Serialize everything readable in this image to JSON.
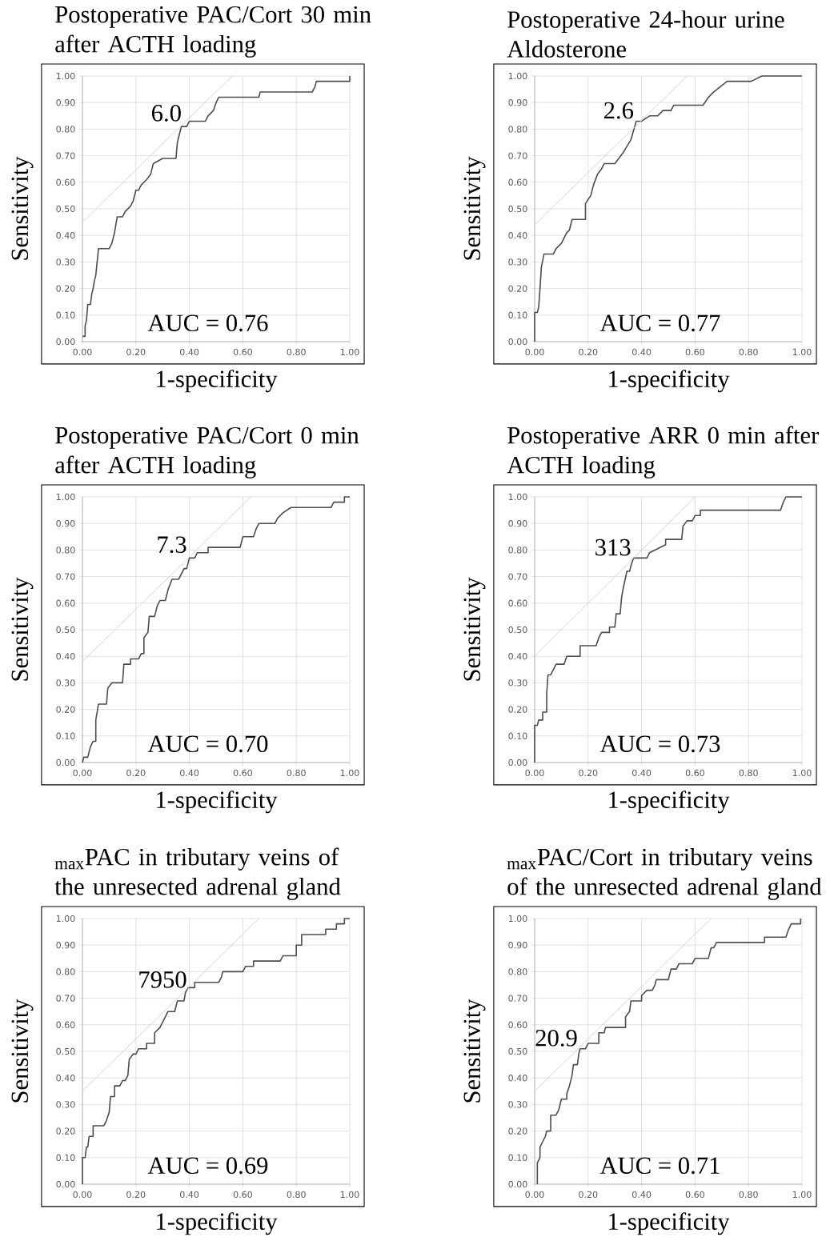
{
  "chart_data": [
    {
      "type": "line",
      "title": "Postoperative PAC/Cort 30 min after ACTH loading",
      "xlabel": "1-specificity",
      "ylabel": "Sensitivity",
      "xlim": [
        0,
        1
      ],
      "ylim": [
        0,
        1
      ],
      "grid": true,
      "xticks": [
        {
          "value": 0,
          "label": "0.00"
        },
        {
          "value": 0.2,
          "label": "0.20"
        },
        {
          "value": 0.4,
          "label": "0.40"
        },
        {
          "value": 0.6,
          "label": "0.60"
        },
        {
          "value": 0.8,
          "label": "0.80"
        },
        {
          "value": 1,
          "label": "1.00"
        }
      ],
      "yticks": [
        {
          "value": 0,
          "label": "0.00"
        },
        {
          "value": 0.1,
          "label": "0.10"
        },
        {
          "value": 0.2,
          "label": "0.20"
        },
        {
          "value": 0.3,
          "label": "0.30"
        },
        {
          "value": 0.4,
          "label": "0.40"
        },
        {
          "value": 0.5,
          "label": "0.50"
        },
        {
          "value": 0.6,
          "label": "0.60"
        },
        {
          "value": 0.7,
          "label": "0.70"
        },
        {
          "value": 0.8,
          "label": "0.80"
        },
        {
          "value": 0.9,
          "label": "0.90"
        },
        {
          "value": 1,
          "label": "1.00"
        }
      ],
      "series": [
        {
          "color": "#4d4d4d",
          "x": [
            0,
            0.01,
            0.01,
            0.015,
            0.02,
            0.03,
            0.035,
            0.04,
            0.045,
            0.05,
            0.055,
            0.06,
            0.1,
            0.11,
            0.12,
            0.13,
            0.15,
            0.16,
            0.18,
            0.19,
            0.2,
            0.21,
            0.22,
            0.24,
            0.255,
            0.265,
            0.3,
            0.35,
            0.355,
            0.365,
            0.37,
            0.39,
            0.4,
            0.46,
            0.47,
            0.49,
            0.5,
            0.51,
            0.66,
            0.665,
            0.86,
            0.87,
            0.875,
            1,
            1
          ],
          "values": [
            0.02,
            0.02,
            0.06,
            0.08,
            0.14,
            0.14,
            0.18,
            0.2,
            0.23,
            0.25,
            0.3,
            0.35,
            0.35,
            0.37,
            0.41,
            0.47,
            0.47,
            0.49,
            0.51,
            0.53,
            0.57,
            0.57,
            0.59,
            0.61,
            0.63,
            0.67,
            0.69,
            0.69,
            0.75,
            0.79,
            0.81,
            0.81,
            0.83,
            0.83,
            0.85,
            0.87,
            0.9,
            0.92,
            0.92,
            0.94,
            0.94,
            0.96,
            0.98,
            0.98,
            1
          ]
        },
        {
          "color": "#d0d0d0",
          "x": [
            0,
            0.56
          ],
          "values": [
            0.45,
            1
          ]
        }
      ],
      "annotations": [
        {
          "text": "6.0",
          "x": 0.38,
          "y": 0.82
        },
        "AUC = 0.76"
      ]
    },
    {
      "type": "line",
      "title": "Postoperative 24-hour urine Aldosterone",
      "xlabel": "1-specificity",
      "ylabel": "Sensitivity",
      "xlim": [
        0,
        1
      ],
      "ylim": [
        0,
        1
      ],
      "grid": true,
      "xticks": [
        {
          "value": 0,
          "label": "0.00"
        },
        {
          "value": 0.2,
          "label": "0.20"
        },
        {
          "value": 0.4,
          "label": "0.40"
        },
        {
          "value": 0.6,
          "label": "0.60"
        },
        {
          "value": 0.8,
          "label": "0.80"
        },
        {
          "value": 1,
          "label": "1.00"
        }
      ],
      "yticks": [
        {
          "value": 0,
          "label": "0.00"
        },
        {
          "value": 0.1,
          "label": "0.10"
        },
        {
          "value": 0.2,
          "label": "0.20"
        },
        {
          "value": 0.3,
          "label": "0.30"
        },
        {
          "value": 0.4,
          "label": "0.40"
        },
        {
          "value": 0.5,
          "label": "0.50"
        },
        {
          "value": 0.6,
          "label": "0.60"
        },
        {
          "value": 0.7,
          "label": "0.70"
        },
        {
          "value": 0.8,
          "label": "0.80"
        },
        {
          "value": 0.9,
          "label": "0.90"
        },
        {
          "value": 1,
          "label": "1.00"
        }
      ],
      "series": [
        {
          "color": "#4d4d4d",
          "x": [
            0,
            0,
            0.01,
            0.015,
            0.02,
            0.025,
            0.035,
            0.07,
            0.08,
            0.1,
            0.12,
            0.13,
            0.14,
            0.19,
            0.19,
            0.21,
            0.22,
            0.235,
            0.25,
            0.26,
            0.3,
            0.33,
            0.36,
            0.38,
            0.4,
            0.43,
            0.46,
            0.48,
            0.51,
            0.52,
            0.63,
            0.65,
            0.67,
            0.72,
            0.81,
            0.85,
            1
          ],
          "values": [
            0,
            0.11,
            0.11,
            0.13,
            0.2,
            0.28,
            0.33,
            0.33,
            0.35,
            0.37,
            0.41,
            0.42,
            0.46,
            0.46,
            0.52,
            0.55,
            0.59,
            0.63,
            0.65,
            0.67,
            0.67,
            0.71,
            0.76,
            0.83,
            0.83,
            0.85,
            0.85,
            0.87,
            0.87,
            0.89,
            0.89,
            0.92,
            0.94,
            0.98,
            0.98,
            1,
            1
          ]
        },
        {
          "color": "#d0d0d0",
          "x": [
            0,
            0.57
          ],
          "values": [
            0.44,
            1
          ]
        }
      ],
      "annotations": [
        {
          "text": "2.6",
          "x": 0.38,
          "y": 0.83
        },
        "AUC = 0.77"
      ]
    },
    {
      "type": "line",
      "title": "Postoperative PAC/Cort 0 min after ACTH loading",
      "xlabel": "1-specificity",
      "ylabel": "Sensitivity",
      "xlim": [
        0,
        1
      ],
      "ylim": [
        0,
        1
      ],
      "grid": true,
      "xticks": [
        {
          "value": 0,
          "label": "0.00"
        },
        {
          "value": 0.2,
          "label": "0.20"
        },
        {
          "value": 0.4,
          "label": "0.40"
        },
        {
          "value": 0.6,
          "label": "0.60"
        },
        {
          "value": 0.8,
          "label": "0.80"
        },
        {
          "value": 1,
          "label": "1.00"
        }
      ],
      "yticks": [
        {
          "value": 0,
          "label": "0.00"
        },
        {
          "value": 0.1,
          "label": "0.10"
        },
        {
          "value": 0.2,
          "label": "0.20"
        },
        {
          "value": 0.3,
          "label": "0.30"
        },
        {
          "value": 0.4,
          "label": "0.40"
        },
        {
          "value": 0.5,
          "label": "0.50"
        },
        {
          "value": 0.6,
          "label": "0.60"
        },
        {
          "value": 0.7,
          "label": "0.70"
        },
        {
          "value": 0.8,
          "label": "0.80"
        },
        {
          "value": 0.9,
          "label": "0.90"
        },
        {
          "value": 1,
          "label": "1.00"
        }
      ],
      "series": [
        {
          "color": "#4d4d4d",
          "x": [
            0,
            0.005,
            0.02,
            0.03,
            0.04,
            0.05,
            0.05,
            0.06,
            0.09,
            0.095,
            0.11,
            0.15,
            0.155,
            0.18,
            0.18,
            0.21,
            0.22,
            0.23,
            0.23,
            0.245,
            0.25,
            0.27,
            0.28,
            0.29,
            0.31,
            0.32,
            0.335,
            0.36,
            0.37,
            0.38,
            0.39,
            0.4,
            0.42,
            0.43,
            0.47,
            0.47,
            0.59,
            0.6,
            0.64,
            0.65,
            0.66,
            0.72,
            0.73,
            0.75,
            0.78,
            0.93,
            0.94,
            0.98,
            0.98,
            1
          ],
          "values": [
            0,
            0.02,
            0.02,
            0.06,
            0.08,
            0.08,
            0.16,
            0.22,
            0.22,
            0.28,
            0.3,
            0.3,
            0.37,
            0.37,
            0.39,
            0.39,
            0.41,
            0.41,
            0.47,
            0.49,
            0.55,
            0.55,
            0.59,
            0.61,
            0.61,
            0.65,
            0.69,
            0.69,
            0.71,
            0.73,
            0.73,
            0.77,
            0.77,
            0.79,
            0.79,
            0.81,
            0.81,
            0.85,
            0.85,
            0.88,
            0.9,
            0.9,
            0.92,
            0.94,
            0.96,
            0.96,
            0.98,
            0.98,
            1,
            1
          ]
        },
        {
          "color": "#d0d0d0",
          "x": [
            0,
            0.63
          ],
          "values": [
            0.38,
            1
          ]
        }
      ],
      "annotations": [
        {
          "text": "7.3",
          "x": 0.4,
          "y": 0.78
        },
        "AUC = 0.70"
      ]
    },
    {
      "type": "line",
      "title": "Postoperative ARR 0 min after ACTH loading",
      "xlabel": "1-specificity",
      "ylabel": "Sensitivity",
      "xlim": [
        0,
        1
      ],
      "ylim": [
        0,
        1
      ],
      "grid": true,
      "xticks": [
        {
          "value": 0,
          "label": "0.00"
        },
        {
          "value": 0.2,
          "label": "0.20"
        },
        {
          "value": 0.4,
          "label": "0.40"
        },
        {
          "value": 0.6,
          "label": "0.60"
        },
        {
          "value": 0.8,
          "label": "0.80"
        },
        {
          "value": 1,
          "label": "1.00"
        }
      ],
      "yticks": [
        {
          "value": 0,
          "label": "0.00"
        },
        {
          "value": 0.1,
          "label": "0.10"
        },
        {
          "value": 0.2,
          "label": "0.20"
        },
        {
          "value": 0.3,
          "label": "0.30"
        },
        {
          "value": 0.4,
          "label": "0.40"
        },
        {
          "value": 0.5,
          "label": "0.50"
        },
        {
          "value": 0.6,
          "label": "0.60"
        },
        {
          "value": 0.7,
          "label": "0.70"
        },
        {
          "value": 0.8,
          "label": "0.80"
        },
        {
          "value": 0.9,
          "label": "0.90"
        },
        {
          "value": 1,
          "label": "1.00"
        }
      ],
      "series": [
        {
          "color": "#4d4d4d",
          "x": [
            0,
            0,
            0.01,
            0.015,
            0.03,
            0.03,
            0.045,
            0.045,
            0.05,
            0.06,
            0.07,
            0.08,
            0.11,
            0.12,
            0.17,
            0.17,
            0.23,
            0.24,
            0.25,
            0.28,
            0.28,
            0.3,
            0.305,
            0.32,
            0.325,
            0.33,
            0.345,
            0.355,
            0.36,
            0.37,
            0.42,
            0.43,
            0.49,
            0.49,
            0.55,
            0.555,
            0.57,
            0.59,
            0.6,
            0.62,
            0.62,
            0.92,
            0.93,
            0.94,
            1
          ],
          "values": [
            0,
            0.14,
            0.14,
            0.16,
            0.16,
            0.19,
            0.19,
            0.26,
            0.33,
            0.33,
            0.35,
            0.37,
            0.37,
            0.4,
            0.4,
            0.44,
            0.44,
            0.47,
            0.49,
            0.49,
            0.51,
            0.51,
            0.56,
            0.56,
            0.62,
            0.65,
            0.72,
            0.72,
            0.74,
            0.77,
            0.77,
            0.79,
            0.82,
            0.84,
            0.84,
            0.89,
            0.91,
            0.91,
            0.93,
            0.93,
            0.95,
            0.95,
            0.98,
            1,
            1
          ]
        },
        {
          "color": "#d0d0d0",
          "x": [
            0,
            0.6
          ],
          "values": [
            0.4,
            1
          ]
        }
      ],
      "annotations": [
        {
          "text": "313",
          "x": 0.37,
          "y": 0.77
        },
        "AUC = 0.73"
      ]
    },
    {
      "type": "line",
      "title": "$_{max}$PAC in tributary veins of the unresected adrenal gland",
      "xlabel": "1-specificity",
      "ylabel": "Sensitivity",
      "xlim": [
        0,
        1
      ],
      "ylim": [
        0,
        1
      ],
      "grid": true,
      "xticks": [
        {
          "value": 0,
          "label": "0.00"
        },
        {
          "value": 0.2,
          "label": "0.20"
        },
        {
          "value": 0.4,
          "label": "0.40"
        },
        {
          "value": 0.6,
          "label": "0.60"
        },
        {
          "value": 0.8,
          "label": "0.80"
        },
        {
          "value": 1,
          "label": "1.00"
        }
      ],
      "yticks": [
        {
          "value": 0,
          "label": "0.00"
        },
        {
          "value": 0.1,
          "label": "0.10"
        },
        {
          "value": 0.2,
          "label": "0.20"
        },
        {
          "value": 0.3,
          "label": "0.30"
        },
        {
          "value": 0.4,
          "label": "0.40"
        },
        {
          "value": 0.5,
          "label": "0.50"
        },
        {
          "value": 0.6,
          "label": "0.60"
        },
        {
          "value": 0.7,
          "label": "0.70"
        },
        {
          "value": 0.8,
          "label": "0.80"
        },
        {
          "value": 0.9,
          "label": "0.90"
        },
        {
          "value": 1,
          "label": "1.00"
        }
      ],
      "series": [
        {
          "color": "#4d4d4d",
          "x": [
            0,
            0,
            0.01,
            0.015,
            0.02,
            0.025,
            0.04,
            0.04,
            0.08,
            0.09,
            0.1,
            0.105,
            0.12,
            0.12,
            0.14,
            0.15,
            0.16,
            0.17,
            0.175,
            0.19,
            0.2,
            0.21,
            0.24,
            0.24,
            0.27,
            0.27,
            0.29,
            0.31,
            0.32,
            0.345,
            0.355,
            0.38,
            0.385,
            0.395,
            0.42,
            0.42,
            0.51,
            0.52,
            0.525,
            0.6,
            0.61,
            0.64,
            0.64,
            0.74,
            0.75,
            0.8,
            0.8,
            0.82,
            0.82,
            0.91,
            0.91,
            0.95,
            0.95,
            0.98,
            0.98,
            1
          ],
          "values": [
            0,
            0.1,
            0.1,
            0.14,
            0.14,
            0.18,
            0.18,
            0.22,
            0.22,
            0.24,
            0.27,
            0.33,
            0.33,
            0.37,
            0.37,
            0.39,
            0.39,
            0.41,
            0.47,
            0.49,
            0.49,
            0.51,
            0.51,
            0.53,
            0.53,
            0.57,
            0.59,
            0.63,
            0.65,
            0.65,
            0.69,
            0.69,
            0.72,
            0.74,
            0.74,
            0.76,
            0.76,
            0.78,
            0.8,
            0.8,
            0.82,
            0.82,
            0.84,
            0.84,
            0.86,
            0.86,
            0.9,
            0.9,
            0.94,
            0.94,
            0.96,
            0.96,
            0.98,
            0.98,
            1,
            1
          ]
        },
        {
          "color": "#d0d0d0",
          "x": [
            0,
            0.66
          ],
          "values": [
            0.35,
            1
          ]
        }
      ],
      "annotations": [
        {
          "text": "7950",
          "x": 0.4,
          "y": 0.73
        },
        "AUC = 0.69"
      ]
    },
    {
      "type": "line",
      "title": "$_{max}$PAC/Cort in tributary veins of the unresected adrenal gland",
      "xlabel": "1-specificity",
      "ylabel": "Sensitivity",
      "xlim": [
        0,
        1
      ],
      "ylim": [
        0,
        1
      ],
      "grid": true,
      "xticks": [
        {
          "value": 0,
          "label": "0.00"
        },
        {
          "value": 0.2,
          "label": "0.20"
        },
        {
          "value": 0.4,
          "label": "0.40"
        },
        {
          "value": 0.6,
          "label": "0.60"
        },
        {
          "value": 0.8,
          "label": "0.80"
        },
        {
          "value": 1,
          "label": "1.00"
        }
      ],
      "yticks": [
        {
          "value": 0,
          "label": "0.00"
        },
        {
          "value": 0.1,
          "label": "0.10"
        },
        {
          "value": 0.2,
          "label": "0.20"
        },
        {
          "value": 0.3,
          "label": "0.30"
        },
        {
          "value": 0.4,
          "label": "0.40"
        },
        {
          "value": 0.5,
          "label": "0.50"
        },
        {
          "value": 0.6,
          "label": "0.60"
        },
        {
          "value": 0.7,
          "label": "0.70"
        },
        {
          "value": 0.8,
          "label": "0.80"
        },
        {
          "value": 0.9,
          "label": "0.90"
        },
        {
          "value": 1,
          "label": "1.00"
        }
      ],
      "series": [
        {
          "color": "#4d4d4d",
          "x": [
            0.01,
            0.01,
            0.02,
            0.02,
            0.03,
            0.04,
            0.045,
            0.06,
            0.06,
            0.08,
            0.09,
            0.1,
            0.12,
            0.12,
            0.13,
            0.14,
            0.145,
            0.16,
            0.165,
            0.17,
            0.19,
            0.2,
            0.24,
            0.24,
            0.26,
            0.265,
            0.34,
            0.34,
            0.355,
            0.36,
            0.4,
            0.4,
            0.42,
            0.44,
            0.45,
            0.455,
            0.5,
            0.51,
            0.53,
            0.54,
            0.59,
            0.6,
            0.65,
            0.655,
            0.66,
            0.67,
            0.68,
            0.86,
            0.86,
            0.94,
            0.95,
            0.96,
            0.995,
            0.995
          ],
          "values": [
            0,
            0.08,
            0.1,
            0.14,
            0.16,
            0.18,
            0.2,
            0.2,
            0.26,
            0.26,
            0.28,
            0.32,
            0.32,
            0.34,
            0.37,
            0.41,
            0.45,
            0.45,
            0.49,
            0.51,
            0.51,
            0.53,
            0.53,
            0.57,
            0.57,
            0.59,
            0.59,
            0.63,
            0.65,
            0.69,
            0.69,
            0.71,
            0.73,
            0.73,
            0.75,
            0.77,
            0.77,
            0.81,
            0.81,
            0.83,
            0.83,
            0.85,
            0.85,
            0.87,
            0.89,
            0.89,
            0.91,
            0.91,
            0.93,
            0.93,
            0.96,
            0.98,
            0.98,
            1
          ]
        },
        {
          "color": "#d0d0d0",
          "x": [
            0,
            0.66
          ],
          "values": [
            0.35,
            1
          ]
        }
      ],
      "annotations": [
        {
          "text": "20.9",
          "x": 0.17,
          "y": 0.51
        },
        "AUC = 0.71"
      ]
    }
  ]
}
